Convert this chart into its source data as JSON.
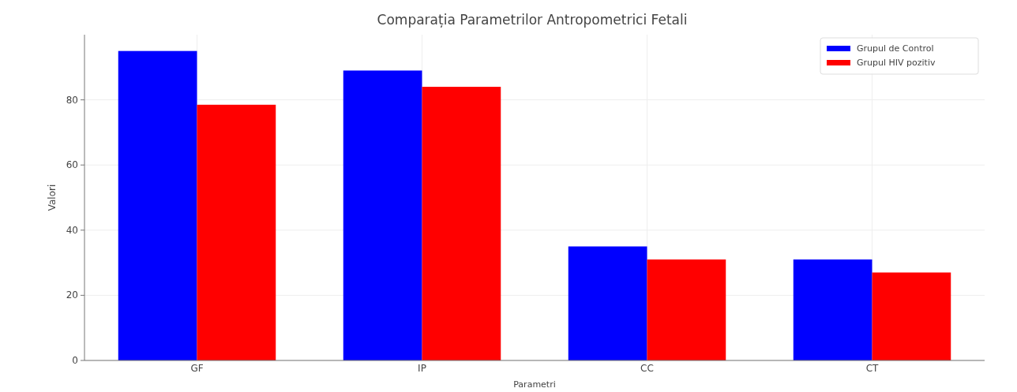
{
  "chart_data": {
    "type": "bar",
    "title": "Comparația Parametrilor Antropometrici Fetali",
    "xlabel": "Parametri",
    "ylabel": "Valori",
    "categories": [
      "GF",
      "IP",
      "CC",
      "CT"
    ],
    "series": [
      {
        "name": "Grupul de Control",
        "color": "#0000ff",
        "values": [
          95,
          89,
          35,
          31
        ]
      },
      {
        "name": "Grupul HIV pozitiv",
        "color": "#ff0000",
        "values": [
          78.5,
          84,
          31,
          27
        ]
      }
    ],
    "ylim": [
      0,
      100
    ],
    "yticks": [
      0,
      20,
      40,
      60,
      80
    ],
    "grid": true,
    "legend": "top right"
  }
}
